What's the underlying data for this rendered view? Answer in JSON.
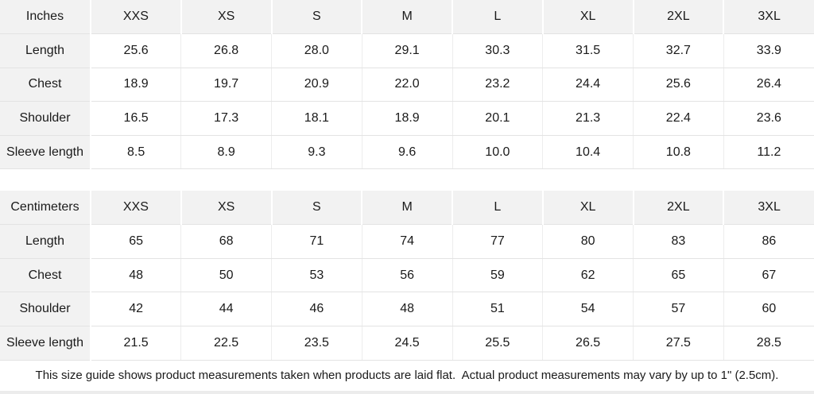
{
  "colors": {
    "cell_bg": "#ffffff",
    "header_bg": "#f2f2f2",
    "row_border": "#e3e3e3",
    "column_border": "#ededed",
    "text": "#1a1a1a",
    "bottom_strip": "#ececec"
  },
  "sizes": [
    "XXS",
    "XS",
    "S",
    "M",
    "L",
    "XL",
    "2XL",
    "3XL"
  ],
  "tables": [
    {
      "unit_label": "Inches",
      "rows": [
        {
          "label": "Length",
          "values": [
            "25.6",
            "26.8",
            "28.0",
            "29.1",
            "30.3",
            "31.5",
            "32.7",
            "33.9"
          ]
        },
        {
          "label": "Chest",
          "values": [
            "18.9",
            "19.7",
            "20.9",
            "22.0",
            "23.2",
            "24.4",
            "25.6",
            "26.4"
          ]
        },
        {
          "label": "Shoulder",
          "values": [
            "16.5",
            "17.3",
            "18.1",
            "18.9",
            "20.1",
            "21.3",
            "22.4",
            "23.6"
          ]
        },
        {
          "label": "Sleeve length",
          "values": [
            "8.5",
            "8.9",
            "9.3",
            "9.6",
            "10.0",
            "10.4",
            "10.8",
            "11.2"
          ]
        }
      ]
    },
    {
      "unit_label": "Centimeters",
      "rows": [
        {
          "label": "Length",
          "values": [
            "65",
            "68",
            "71",
            "74",
            "77",
            "80",
            "83",
            "86"
          ]
        },
        {
          "label": "Chest",
          "values": [
            "48",
            "50",
            "53",
            "56",
            "59",
            "62",
            "65",
            "67"
          ]
        },
        {
          "label": "Shoulder",
          "values": [
            "42",
            "44",
            "46",
            "48",
            "51",
            "54",
            "57",
            "60"
          ]
        },
        {
          "label": "Sleeve length",
          "values": [
            "21.5",
            "22.5",
            "23.5",
            "24.5",
            "25.5",
            "26.5",
            "27.5",
            "28.5"
          ]
        }
      ]
    }
  ],
  "footer": {
    "note": "This size guide shows product measurements taken when products are laid flat.  Actual product measurements may vary by up to 1\" (2.5cm)."
  }
}
